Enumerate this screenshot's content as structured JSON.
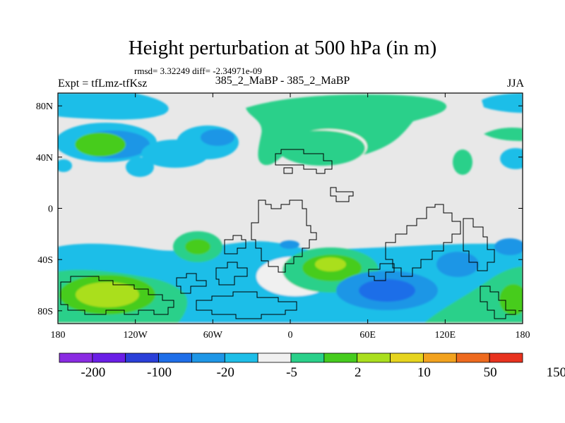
{
  "header": {
    "title": "Height perturbation at 500 hPa (in m)",
    "stats": "rmsd= 3.32249 diff= -2.34971e-09",
    "left_label": "Expt = tfLmz-tfKsz",
    "center_label": "385_2_MaBP - 385_2_MaBP",
    "right_label": "JJA"
  },
  "chart_data": {
    "type": "contour-map",
    "title": "Height perturbation at 500 hPa (in m)",
    "variable": "500 hPa geopotential height perturbation",
    "units": "m",
    "season": "JJA",
    "xlim": [
      -180,
      180
    ],
    "ylim": [
      -90,
      90
    ],
    "x_ticks": [
      {
        "value": -180,
        "label": "180"
      },
      {
        "value": -120,
        "label": "120W"
      },
      {
        "value": -60,
        "label": "60W"
      },
      {
        "value": 0,
        "label": "0"
      },
      {
        "value": 60,
        "label": "60E"
      },
      {
        "value": 120,
        "label": "120E"
      },
      {
        "value": 180,
        "label": "180"
      }
    ],
    "y_ticks": [
      {
        "value": 80,
        "label": "80N"
      },
      {
        "value": 40,
        "label": "40N"
      },
      {
        "value": 0,
        "label": "0"
      },
      {
        "value": -40,
        "label": "40S"
      },
      {
        "value": -80,
        "label": "80S"
      }
    ],
    "colorbar": {
      "colors": [
        "#8a2be2",
        "#6a1ee6",
        "#2a3fd8",
        "#1e6ee8",
        "#1e96e6",
        "#1ebee8",
        "#f0f0f0",
        "#2ad08a",
        "#46cc1e",
        "#aadf1e",
        "#e6d41e",
        "#f2a21e",
        "#ee6a1e",
        "#e8321e"
      ],
      "tick_labels": [
        "-200",
        "-100",
        "-20",
        "-5",
        "2",
        "10",
        "50",
        "150"
      ]
    },
    "features": [
      {
        "name": "Arctic positive band",
        "lon": -30,
        "lat": 78,
        "level": 1
      },
      {
        "name": "North Pacific negative",
        "lon": -145,
        "lat": 52,
        "level": -2
      },
      {
        "name": "North Pacific positive core",
        "lon": -150,
        "lat": 52,
        "level": 2
      },
      {
        "name": "North Atlantic positive",
        "lon": -10,
        "lat": 60,
        "level": 1
      },
      {
        "name": "Eurasian positive",
        "lon": 50,
        "lat": 50,
        "level": 1
      },
      {
        "name": "South Atlantic positive",
        "lon": 30,
        "lat": -45,
        "level": 2
      },
      {
        "name": "South Indian Ocean negative",
        "lon": 75,
        "lat": -62,
        "level": -3
      },
      {
        "name": "South Pacific positive",
        "lon": -145,
        "lat": -68,
        "level": 3
      },
      {
        "name": "Southern Ocean negative belt",
        "lon": -40,
        "lat": -58,
        "level": -2
      }
    ]
  }
}
